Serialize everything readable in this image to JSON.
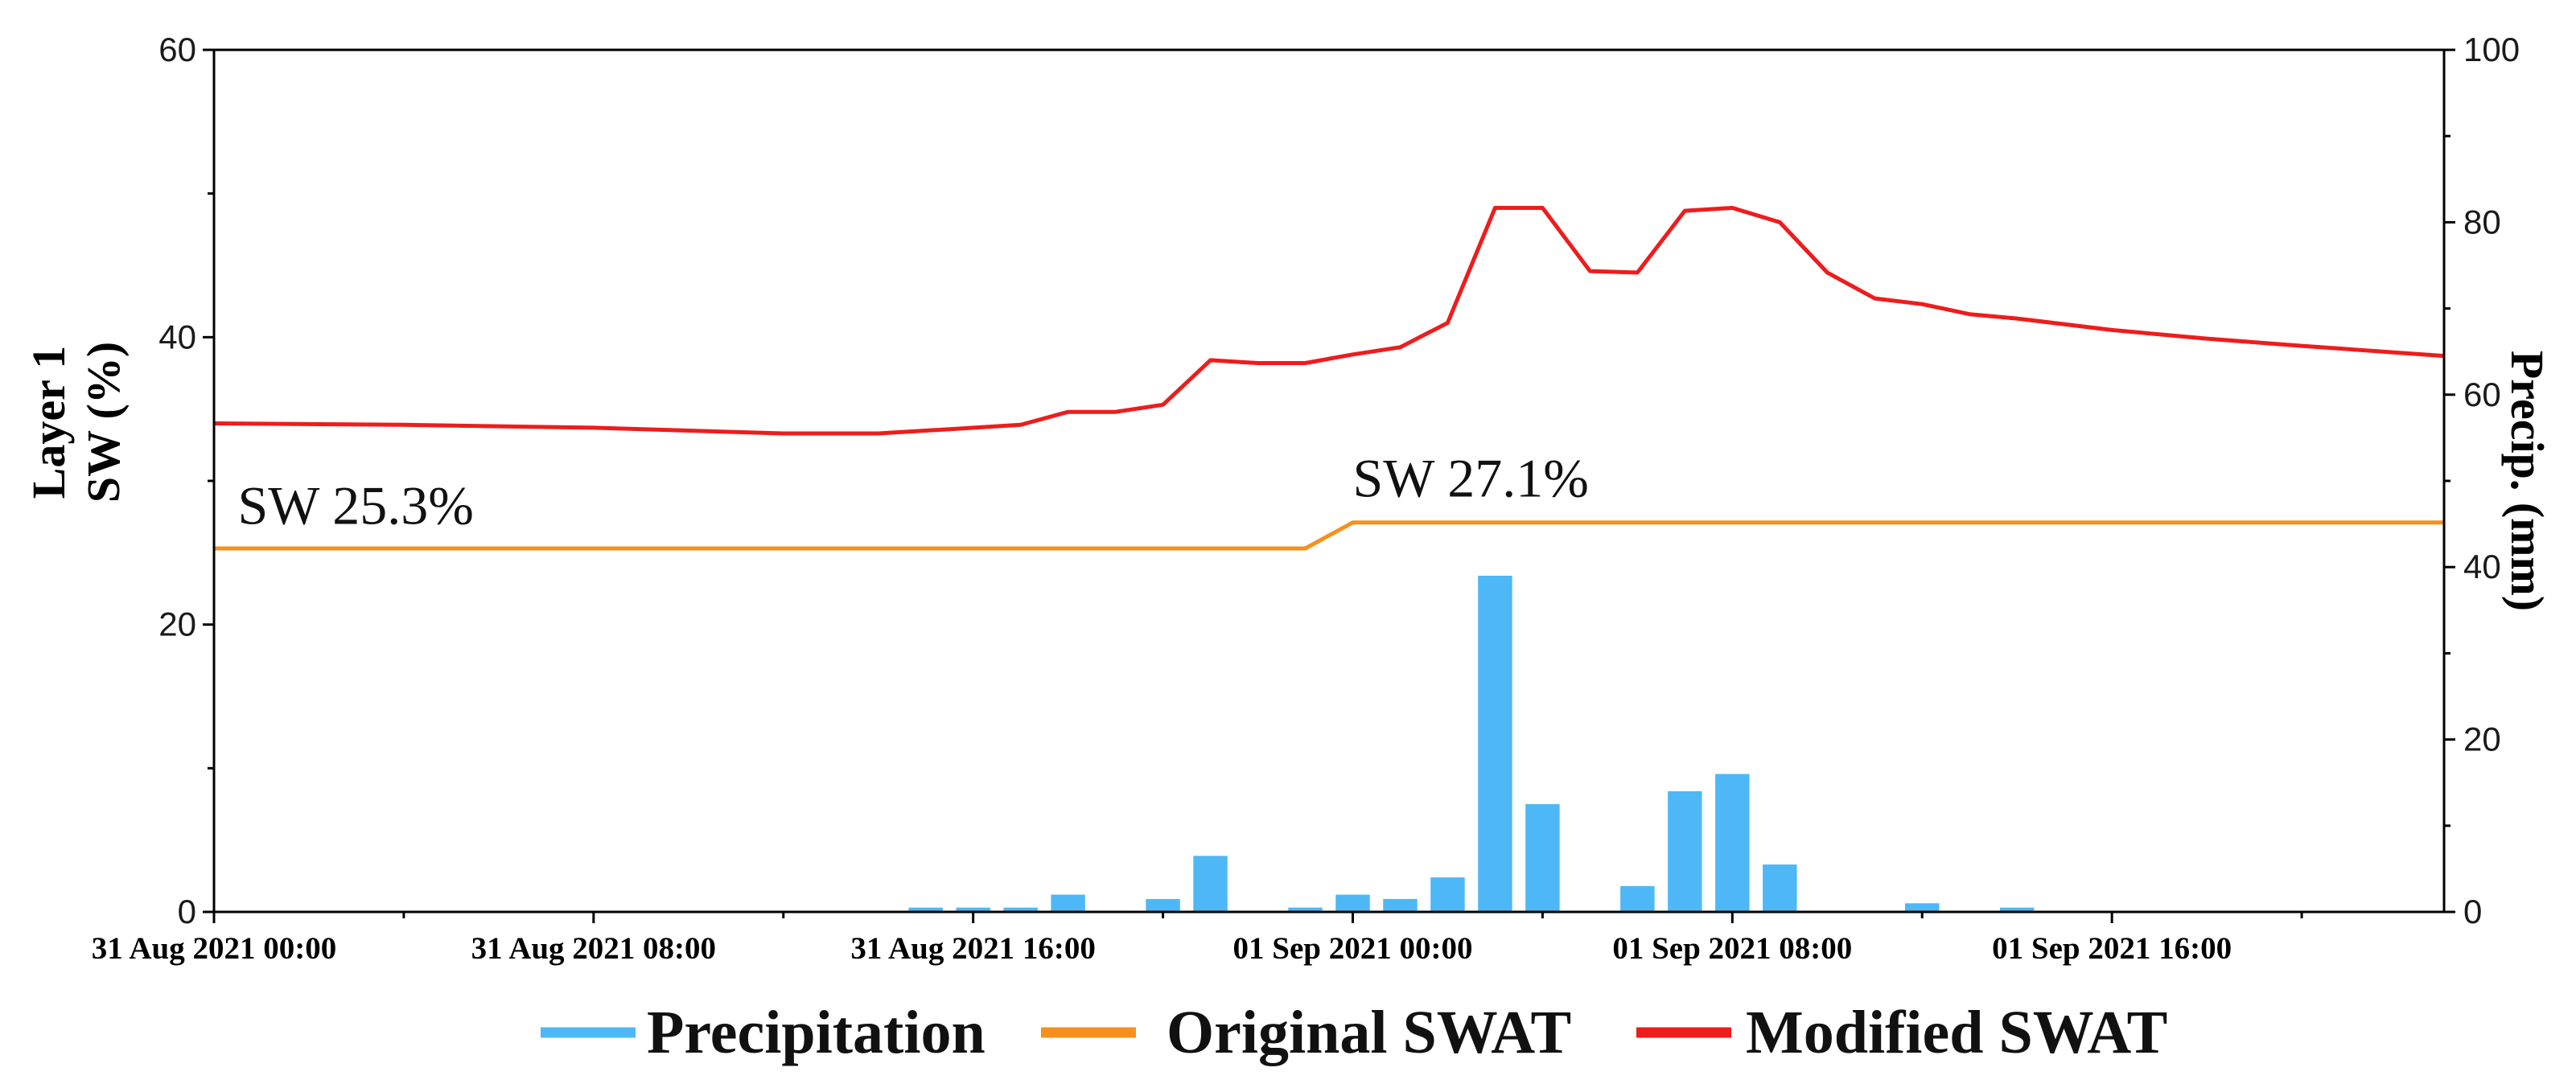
{
  "chart_data": {
    "type": "bar+line",
    "title": "",
    "x_label": "",
    "y_left_label_line1": "Layer 1",
    "y_left_label_line2": "SW (%)",
    "y_right_label": "Precip. (mm)",
    "y_left_range": [
      0,
      60
    ],
    "y_right_range": [
      0,
      100
    ],
    "y_left_ticks": [
      "0",
      "20",
      "40",
      "60"
    ],
    "y_right_ticks": [
      "0",
      "20",
      "40",
      "60",
      "80",
      "100"
    ],
    "x_range_hours": [
      0,
      47
    ],
    "x_ticks": [
      {
        "hour": 0,
        "label": "31 Aug 2021 00:00"
      },
      {
        "hour": 8,
        "label": "31 Aug 2021 08:00"
      },
      {
        "hour": 16,
        "label": "31 Aug 2021 16:00"
      },
      {
        "hour": 24,
        "label": "01 Sep 2021 00:00"
      },
      {
        "hour": 32,
        "label": "01 Sep 2021 08:00"
      },
      {
        "hour": 40,
        "label": "01 Sep 2021 16:00"
      }
    ],
    "precipitation": {
      "name": "Precipitation",
      "color": "#4db8f5",
      "axis": "right",
      "bars": [
        {
          "hour": 15,
          "value": 0.5
        },
        {
          "hour": 16,
          "value": 0.5
        },
        {
          "hour": 17,
          "value": 0.5
        },
        {
          "hour": 18,
          "value": 2.0
        },
        {
          "hour": 20,
          "value": 1.5
        },
        {
          "hour": 21,
          "value": 6.5
        },
        {
          "hour": 23,
          "value": 0.5
        },
        {
          "hour": 24,
          "value": 2.0
        },
        {
          "hour": 25,
          "value": 1.5
        },
        {
          "hour": 26,
          "value": 4.0
        },
        {
          "hour": 27,
          "value": 39.0
        },
        {
          "hour": 28,
          "value": 12.5
        },
        {
          "hour": 30,
          "value": 3.0
        },
        {
          "hour": 31,
          "value": 14.0
        },
        {
          "hour": 32,
          "value": 16.0
        },
        {
          "hour": 33,
          "value": 5.5
        },
        {
          "hour": 36,
          "value": 1.0
        },
        {
          "hour": 38,
          "value": 0.5
        }
      ]
    },
    "original_swat": {
      "name": "Original SWAT",
      "color": "#f5901e",
      "axis": "left",
      "points": [
        [
          0,
          25.3
        ],
        [
          23,
          25.3
        ],
        [
          24,
          27.1
        ],
        [
          47,
          27.1
        ]
      ]
    },
    "modified_swat": {
      "name": "Modified SWAT",
      "color": "#ee1c1c",
      "axis": "left",
      "points": [
        [
          0,
          34.0
        ],
        [
          4,
          33.9
        ],
        [
          8,
          33.7
        ],
        [
          12,
          33.3
        ],
        [
          14,
          33.3
        ],
        [
          15.5,
          33.6
        ],
        [
          17,
          33.9
        ],
        [
          18,
          34.8
        ],
        [
          19,
          34.8
        ],
        [
          20,
          35.3
        ],
        [
          21,
          38.4
        ],
        [
          22,
          38.2
        ],
        [
          23,
          38.2
        ],
        [
          24,
          38.8
        ],
        [
          25,
          39.3
        ],
        [
          26,
          41.0
        ],
        [
          27,
          49.0
        ],
        [
          28,
          49.0
        ],
        [
          29,
          44.6
        ],
        [
          30,
          44.5
        ],
        [
          31,
          48.8
        ],
        [
          32,
          49.0
        ],
        [
          33,
          48.0
        ],
        [
          34,
          44.5
        ],
        [
          35,
          42.7
        ],
        [
          36,
          42.3
        ],
        [
          37,
          41.6
        ],
        [
          38,
          41.3
        ],
        [
          40,
          40.5
        ],
        [
          42,
          39.9
        ],
        [
          44,
          39.4
        ],
        [
          47,
          38.7
        ]
      ]
    },
    "annotations": [
      {
        "text": "SW 25.3%",
        "hour": 0.5,
        "value": 27.0
      },
      {
        "text": "SW 27.1%",
        "hour": 24.0,
        "value": 28.9
      }
    ],
    "legend": [
      "Precipitation",
      "Original SWAT",
      "Modified SWAT"
    ]
  }
}
